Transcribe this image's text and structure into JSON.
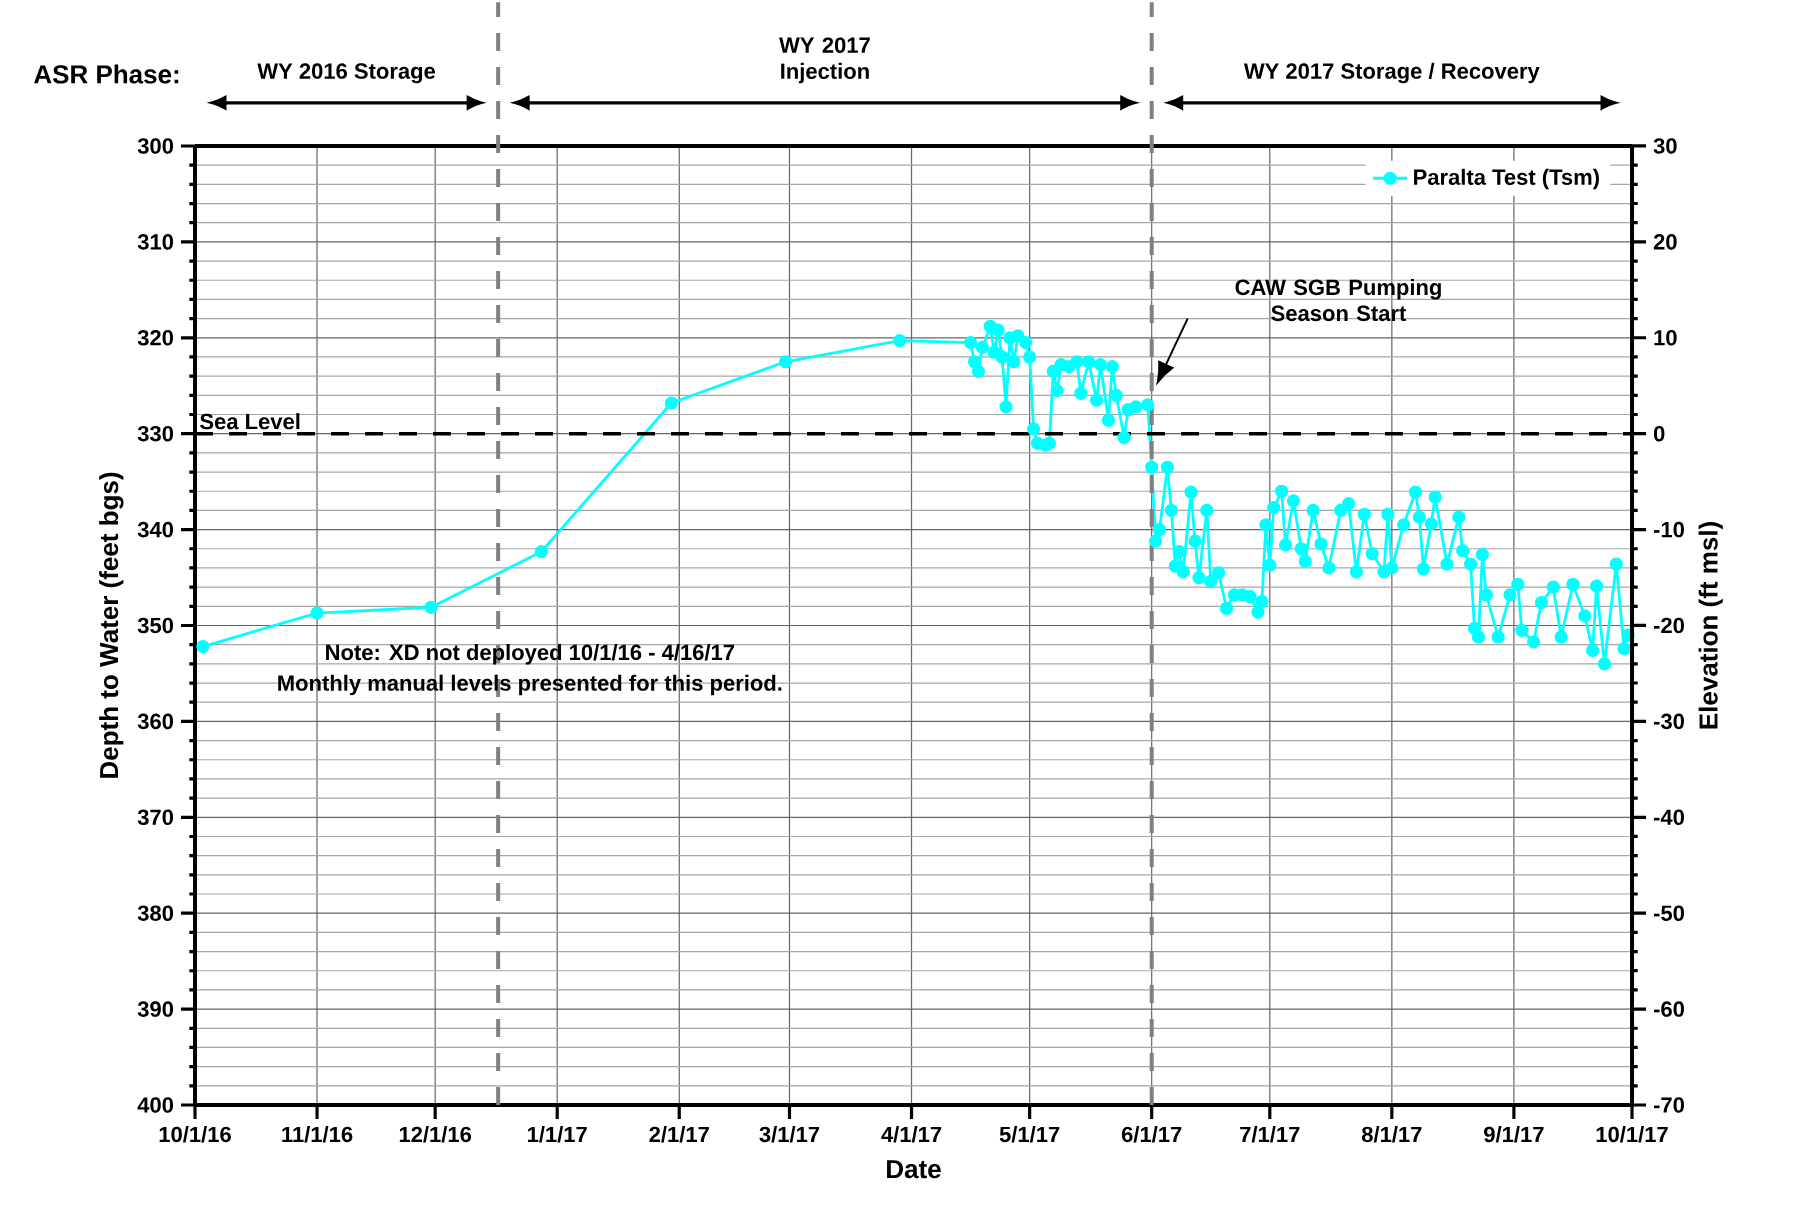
{
  "chart_data": {
    "type": "line",
    "xlabel": "Date",
    "ylabel": "Depth to Water (feet bgs)",
    "y2label": "Elevation (ft msl)",
    "x": [
      "2016-10-03",
      "2016-11-01",
      "2016-11-30",
      "2016-12-28",
      "2017-01-30",
      "2017-02-28",
      "2017-03-29",
      "2017-04-16",
      "2017-04-17",
      "2017-04-18",
      "2017-04-19",
      "2017-04-21",
      "2017-04-22",
      "2017-04-23",
      "2017-04-24",
      "2017-04-25",
      "2017-04-26",
      "2017-04-27",
      "2017-04-28",
      "2017-04-30",
      "2017-05-01",
      "2017-05-02",
      "2017-05-03",
      "2017-05-05",
      "2017-05-06",
      "2017-05-07",
      "2017-05-08",
      "2017-05-09",
      "2017-05-11",
      "2017-05-13",
      "2017-05-14",
      "2017-05-16",
      "2017-05-18",
      "2017-05-19",
      "2017-05-21",
      "2017-05-22",
      "2017-05-23",
      "2017-05-25",
      "2017-05-26",
      "2017-05-28",
      "2017-05-31",
      "2017-06-01",
      "2017-06-02",
      "2017-06-03",
      "2017-06-05",
      "2017-06-06",
      "2017-06-07",
      "2017-06-08",
      "2017-06-09",
      "2017-06-11",
      "2017-06-12",
      "2017-06-13",
      "2017-06-15",
      "2017-06-16",
      "2017-06-18",
      "2017-06-20",
      "2017-06-22",
      "2017-06-24",
      "2017-06-26",
      "2017-06-28",
      "2017-06-29",
      "2017-06-30",
      "2017-07-01",
      "2017-07-02",
      "2017-07-04",
      "2017-07-05",
      "2017-07-07",
      "2017-07-09",
      "2017-07-10",
      "2017-07-12",
      "2017-07-14",
      "2017-07-16",
      "2017-07-19",
      "2017-07-21",
      "2017-07-23",
      "2017-07-25",
      "2017-07-27",
      "2017-07-30",
      "2017-07-31",
      "2017-08-01",
      "2017-08-04",
      "2017-08-07",
      "2017-08-08",
      "2017-08-09",
      "2017-08-11",
      "2017-08-12",
      "2017-08-15",
      "2017-08-18",
      "2017-08-19",
      "2017-08-21",
      "2017-08-22",
      "2017-08-23",
      "2017-08-24",
      "2017-08-25",
      "2017-08-28",
      "2017-08-31",
      "2017-09-02",
      "2017-09-03",
      "2017-09-06",
      "2017-09-08",
      "2017-09-11",
      "2017-09-13",
      "2017-09-16",
      "2017-09-19",
      "2017-09-21",
      "2017-09-22",
      "2017-09-24",
      "2017-09-27",
      "2017-09-29",
      "2017-09-30"
    ],
    "series": [
      {
        "name": "Paralta Test (Tsm)",
        "color": "#00ffff",
        "values": [
          352.2,
          348.7,
          348.1,
          342.3,
          326.8,
          322.5,
          320.3,
          320.5,
          322.5,
          323.5,
          321.0,
          318.8,
          321.5,
          319.2,
          322.0,
          327.2,
          320.0,
          322.5,
          319.8,
          320.5,
          322.0,
          329.5,
          331.0,
          331.2,
          331.0,
          323.5,
          325.5,
          322.8,
          323.0,
          322.5,
          325.8,
          322.5,
          326.5,
          322.8,
          328.6,
          323.0,
          326.0,
          330.4,
          327.5,
          327.2,
          327.0,
          333.5,
          341.2,
          340.0,
          333.5,
          338.0,
          343.8,
          342.3,
          344.4,
          336.1,
          341.2,
          345.0,
          338.0,
          345.4,
          344.5,
          348.2,
          346.8,
          346.8,
          347.0,
          348.6,
          347.5,
          339.5,
          343.7,
          337.7,
          336.0,
          341.6,
          337.0,
          342.0,
          343.3,
          338.0,
          341.5,
          344.0,
          338.0,
          337.3,
          344.4,
          338.4,
          342.5,
          344.4,
          338.4,
          344.0,
          339.5,
          336.1,
          338.7,
          344.1,
          339.4,
          336.6,
          343.6,
          338.7,
          342.2,
          343.6,
          350.3,
          351.2,
          342.6,
          346.8,
          351.2,
          346.8,
          345.7,
          350.5,
          351.7,
          347.6,
          346.0,
          351.2,
          345.7,
          349.0,
          352.6,
          345.9,
          354.0,
          343.6,
          352.4,
          351.0
        ]
      }
    ],
    "xlim": [
      "2016-10-01",
      "2017-10-01"
    ],
    "xticks": [
      {
        "value": "2016-10-01",
        "label": "10/1/16"
      },
      {
        "value": "2016-11-01",
        "label": "11/1/16"
      },
      {
        "value": "2016-12-01",
        "label": "12/1/16"
      },
      {
        "value": "2017-01-01",
        "label": "1/1/17"
      },
      {
        "value": "2017-02-01",
        "label": "2/1/17"
      },
      {
        "value": "2017-03-01",
        "label": "3/1/17"
      },
      {
        "value": "2017-04-01",
        "label": "4/1/17"
      },
      {
        "value": "2017-05-01",
        "label": "5/1/17"
      },
      {
        "value": "2017-06-01",
        "label": "6/1/17"
      },
      {
        "value": "2017-07-01",
        "label": "7/1/17"
      },
      {
        "value": "2017-08-01",
        "label": "8/1/17"
      },
      {
        "value": "2017-09-01",
        "label": "9/1/17"
      },
      {
        "value": "2017-10-01",
        "label": "10/1/17"
      }
    ],
    "ylim": [
      400,
      300
    ],
    "yticks": [
      300,
      310,
      320,
      330,
      340,
      350,
      360,
      370,
      380,
      390,
      400
    ],
    "y2lim": [
      -70,
      30
    ],
    "y2ticks": [
      30,
      20,
      10,
      0,
      -10,
      -20,
      -30,
      -40,
      -50,
      -60,
      -70
    ],
    "ref_lines": [
      {
        "axis": "y",
        "value": 330,
        "label": "Sea Level",
        "color": "#000000",
        "line_style": "dashed"
      },
      {
        "axis": "x",
        "value": "2016-12-17",
        "color": "#808080",
        "line_style": "dashed"
      },
      {
        "axis": "x",
        "value": "2017-06-01",
        "color": "#808080",
        "line_style": "dashed"
      }
    ],
    "annotations": [
      "ASR Phase:",
      "WY 2016 Storage",
      "WY 2017 Injection",
      "WY 2017 Storage / Recovery",
      "CAW SGB Pumping Season Start",
      "Note: XD not deployed 10/1/16 - 4/16/17",
      "Monthly manual levels presented for this period."
    ],
    "grid": true,
    "legend": "top right",
    "marker": "circle",
    "line_style": "solid"
  }
}
